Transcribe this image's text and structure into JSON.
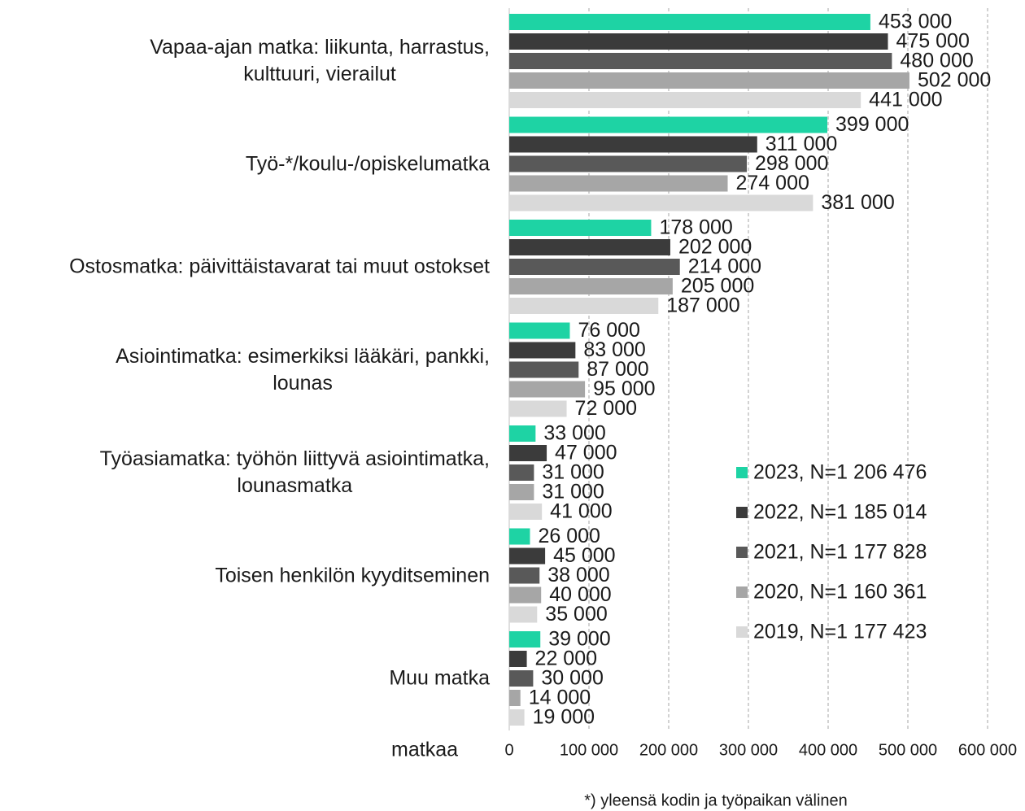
{
  "chart_data": {
    "type": "bar",
    "orientation": "horizontal",
    "x_label": "matkaa",
    "footnote": "*) yleensä kodin ja työpaikan välinen",
    "categories": [
      "Vapaa-ajan matka: liikunta, harrastus,\nkulttuuri, vierailut",
      "Työ-*/koulu-/opiskelumatka",
      "Ostosmatka: päivittäistavarat tai muut ostokset",
      "Asiointimatka: esimerkiksi lääkäri, pankki,\nlounas",
      "Työasiamatka: työhön liittyvä asiointimatka,\nlounasmatka",
      "Toisen henkilön kyyditseminen",
      "Muu matka"
    ],
    "series": [
      {
        "name": "2023, N=1 206 476",
        "color": "#1ed3a4",
        "values": [
          453000,
          399000,
          178000,
          76000,
          33000,
          26000,
          39000
        ],
        "value_labels": [
          "453 000",
          "399 000",
          "178 000",
          "76 000",
          "33 000",
          "26 000",
          "39 000"
        ]
      },
      {
        "name": "2022, N=1 185 014",
        "color": "#3b3b3b",
        "values": [
          475000,
          311000,
          202000,
          83000,
          47000,
          45000,
          22000
        ],
        "value_labels": [
          "475 000",
          "311 000",
          "202 000",
          "83 000",
          "47 000",
          "45 000",
          "22 000"
        ]
      },
      {
        "name": "2021, N=1 177 828",
        "color": "#595959",
        "values": [
          480000,
          298000,
          214000,
          87000,
          31000,
          38000,
          30000
        ],
        "value_labels": [
          "480 000",
          "298 000",
          "214 000",
          "87 000",
          "31 000",
          "38 000",
          "30 000"
        ]
      },
      {
        "name": "2020, N=1 160 361",
        "color": "#a6a6a6",
        "values": [
          502000,
          274000,
          205000,
          95000,
          31000,
          40000,
          14000
        ],
        "value_labels": [
          "502 000",
          "274 000",
          "205 000",
          "95 000",
          "31 000",
          "40 000",
          "14 000"
        ]
      },
      {
        "name": "2019, N=1 177 423",
        "color": "#d9d9d9",
        "values": [
          441000,
          381000,
          187000,
          72000,
          41000,
          35000,
          19000
        ],
        "value_labels": [
          "441 000",
          "381 000",
          "187 000",
          "72 000",
          "41 000",
          "35 000",
          "19 000"
        ]
      }
    ],
    "xlim": [
      0,
      600000
    ],
    "xticks": [
      0,
      {
        "value": 100000,
        "label": "100 000"
      },
      {
        "value": 200000,
        "label": "200 000"
      },
      {
        "value": 300000,
        "label": "300 000"
      },
      {
        "value": 400000,
        "label": "400 000"
      },
      {
        "value": 500000,
        "label": "500 000"
      },
      {
        "value": 600000,
        "label": "600 000"
      }
    ],
    "grid": true,
    "legend": "right"
  }
}
